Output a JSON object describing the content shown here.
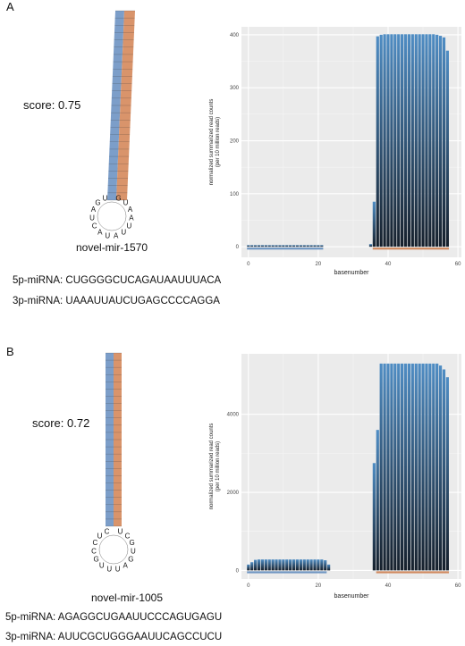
{
  "panels": [
    {
      "letter": "A",
      "score": "score: 0.75",
      "name": "novel-mir-1570",
      "mirna_5p": "5p-miRNA: CUGGGGCUCAGAUAAUUUACA",
      "mirna_3p": "3p-miRNA: UAAAUUAUCUGAGCCCCAGGA",
      "hairpin": {
        "loop_letters": [
          "G",
          "U",
          "A",
          "A",
          "U",
          "U",
          "A",
          "U",
          "A",
          "C",
          "U",
          "A",
          "G",
          "U"
        ],
        "stem_5p_color": "#7c9ec9",
        "stem_3p_color": "#d9946b"
      }
    },
    {
      "letter": "B",
      "score": "score: 0.72",
      "name": "novel-mir-1005",
      "mirna_5p": "5p-miRNA: AGAGGCUGAAUUCCCAGUGAGU",
      "mirna_3p": "3p-miRNA: AUUCGCUGGGAAUUCAGCCUCU",
      "hairpin": {
        "loop_letters": [
          "U",
          "C",
          "G",
          "U",
          "G",
          "A",
          "U",
          "U",
          "U",
          "G",
          "C",
          "C",
          "U",
          "C"
        ],
        "stem_5p_color": "#7c9ec9",
        "stem_3p_color": "#d9946b"
      }
    }
  ],
  "chart_data": [
    {
      "type": "bar",
      "xlabel": "basenumber",
      "ylabel": "normalized summarized read counts",
      "ylabel2": "(per 10 million reads)",
      "xlim": [
        -2,
        61
      ],
      "ylim": [
        -20,
        415
      ],
      "xticks": [
        0,
        20,
        40,
        60
      ],
      "yticks": [
        0,
        100,
        200,
        300,
        400
      ],
      "grid": true,
      "background": "#ebebeb",
      "bar_color_top": "#4f8dc4",
      "bar_color_bottom": "#16202c",
      "x": [
        0,
        1,
        2,
        3,
        4,
        5,
        6,
        7,
        8,
        9,
        10,
        11,
        12,
        13,
        14,
        15,
        16,
        17,
        18,
        19,
        20,
        21,
        22,
        23,
        24,
        25,
        26,
        27,
        28,
        29,
        30,
        31,
        32,
        33,
        34,
        35,
        36,
        37,
        38,
        39,
        40,
        41,
        42,
        43,
        44,
        45,
        46,
        47,
        48,
        49,
        50,
        51,
        52,
        53,
        54,
        55,
        56,
        57
      ],
      "values": [
        3,
        3,
        3,
        3,
        3,
        3,
        3,
        3,
        3,
        3,
        3,
        3,
        3,
        3,
        3,
        3,
        3,
        3,
        3,
        3,
        3,
        3,
        0,
        0,
        0,
        0,
        0,
        0,
        0,
        0,
        0,
        0,
        0,
        0,
        0,
        5,
        85,
        397,
        400,
        401,
        401,
        401,
        401,
        401,
        401,
        401,
        401,
        401,
        401,
        401,
        401,
        401,
        401,
        401,
        400,
        398,
        395,
        370
      ],
      "annotations": [
        {
          "x_start": 0,
          "x_end": 21,
          "color": "#6f96c2"
        },
        {
          "x_start": 36,
          "x_end": 57,
          "color": "#d08a5f"
        }
      ]
    },
    {
      "type": "bar",
      "xlabel": "basenumber",
      "ylabel": "normalized summarized read counts",
      "ylabel2": "(per 10 million reads)",
      "xlim": [
        -2,
        61
      ],
      "ylim": [
        -220,
        5550
      ],
      "xticks": [
        0,
        20,
        40,
        60
      ],
      "yticks": [
        0,
        2000,
        4000
      ],
      "grid": true,
      "background": "#ebebeb",
      "bar_color_top": "#4f8dc4",
      "bar_color_bottom": "#16202c",
      "x": [
        0,
        1,
        2,
        3,
        4,
        5,
        6,
        7,
        8,
        9,
        10,
        11,
        12,
        13,
        14,
        15,
        16,
        17,
        18,
        19,
        20,
        21,
        22,
        23,
        24,
        25,
        26,
        27,
        28,
        29,
        30,
        31,
        32,
        33,
        34,
        35,
        36,
        37,
        38,
        39,
        40,
        41,
        42,
        43,
        44,
        45,
        46,
        47,
        48,
        49,
        50,
        51,
        52,
        53,
        54,
        55,
        56,
        57
      ],
      "values": [
        150,
        210,
        270,
        280,
        280,
        280,
        280,
        280,
        280,
        280,
        280,
        280,
        280,
        280,
        280,
        280,
        280,
        280,
        280,
        280,
        280,
        280,
        260,
        150,
        0,
        0,
        0,
        0,
        0,
        0,
        0,
        0,
        0,
        0,
        0,
        0,
        2750,
        3600,
        5300,
        5300,
        5300,
        5300,
        5300,
        5300,
        5300,
        5300,
        5300,
        5300,
        5300,
        5300,
        5300,
        5300,
        5300,
        5300,
        5300,
        5250,
        5150,
        4950
      ],
      "annotations": [
        {
          "x_start": 0,
          "x_end": 22,
          "color": "#6f96c2"
        },
        {
          "x_start": 37,
          "x_end": 57,
          "color": "#d08a5f"
        }
      ]
    }
  ]
}
